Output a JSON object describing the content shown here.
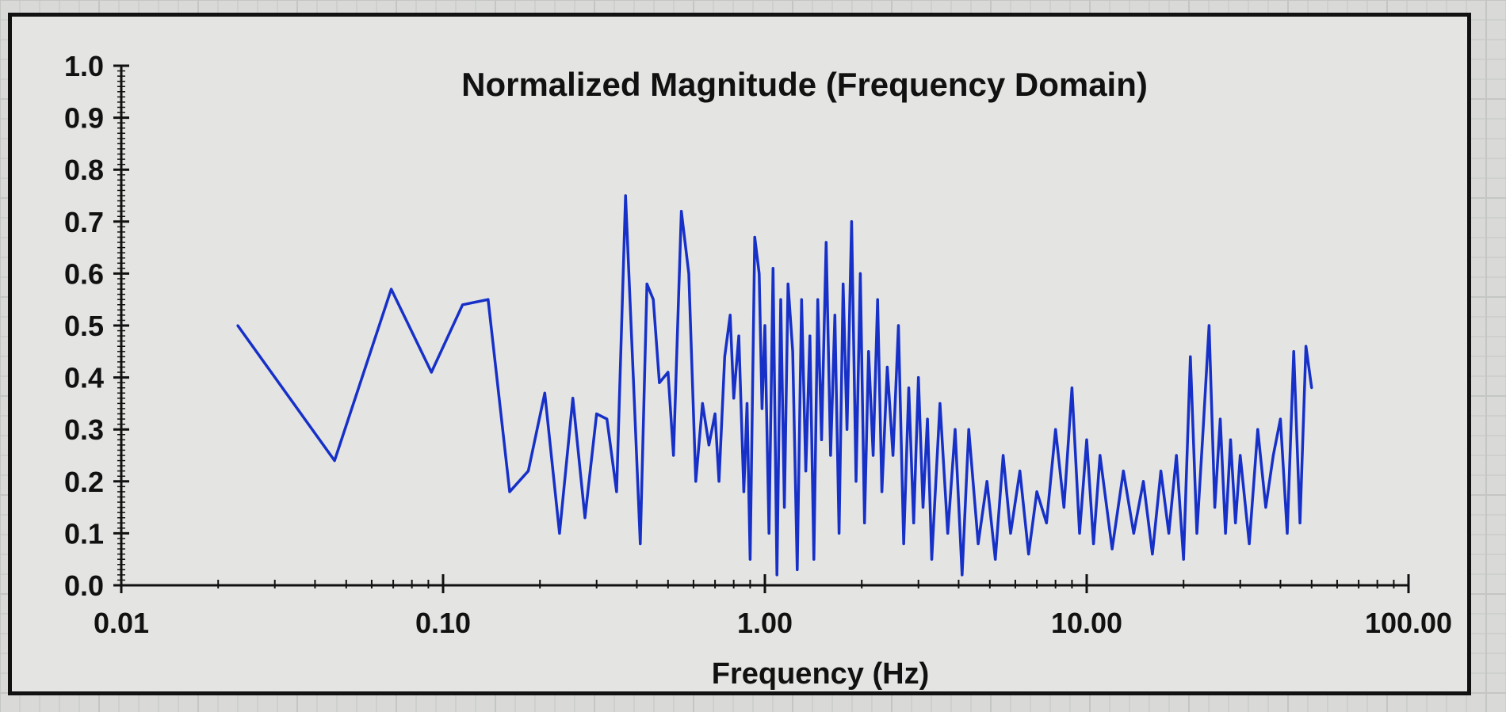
{
  "chart_data": {
    "type": "line",
    "title": "Normalized Magnitude (Frequency Domain)",
    "xlabel": "Frequency (Hz)",
    "ylabel": "",
    "x_scale": "log",
    "xlim": [
      0.01,
      100.0
    ],
    "ylim": [
      0.0,
      1.0
    ],
    "x_ticks": [
      "0.01",
      "0.10",
      "1.00",
      "10.00",
      "100.00"
    ],
    "y_ticks": [
      "0.0",
      "0.1",
      "0.2",
      "0.3",
      "0.4",
      "0.5",
      "0.6",
      "0.7",
      "0.8",
      "0.9",
      "1.0"
    ],
    "grid": false,
    "legend": "none",
    "line_color": "#1630c8",
    "series": [
      {
        "x": [
          0.023,
          0.046,
          0.069,
          0.092,
          0.115,
          0.138,
          0.161,
          0.184,
          0.207,
          0.23,
          0.253,
          0.276,
          0.3,
          0.323,
          0.346,
          0.369,
          0.39,
          0.41,
          0.43,
          0.45,
          0.47,
          0.5,
          0.52,
          0.55,
          0.58,
          0.61,
          0.64,
          0.67,
          0.7,
          0.72,
          0.75,
          0.78,
          0.8,
          0.83,
          0.86,
          0.88,
          0.9,
          0.93,
          0.96,
          0.98,
          1.0,
          1.03,
          1.06,
          1.09,
          1.12,
          1.15,
          1.18,
          1.22,
          1.26,
          1.3,
          1.34,
          1.38,
          1.42,
          1.46,
          1.5,
          1.55,
          1.6,
          1.65,
          1.7,
          1.75,
          1.8,
          1.86,
          1.92,
          1.98,
          2.04,
          2.1,
          2.17,
          2.24,
          2.31,
          2.4,
          2.5,
          2.6,
          2.7,
          2.8,
          2.9,
          3.0,
          3.1,
          3.2,
          3.3,
          3.5,
          3.7,
          3.9,
          4.1,
          4.3,
          4.6,
          4.9,
          5.2,
          5.5,
          5.8,
          6.2,
          6.6,
          7.0,
          7.5,
          8.0,
          8.5,
          9.0,
          9.5,
          10.0,
          10.5,
          11.0,
          12.0,
          13.0,
          14.0,
          15.0,
          16.0,
          17.0,
          18.0,
          19.0,
          20.0,
          21.0,
          22.0,
          23.0,
          24.0,
          25.0,
          26.0,
          27.0,
          28.0,
          29.0,
          30.0,
          32.0,
          34.0,
          36.0,
          38.0,
          40.0,
          42.0,
          44.0,
          46.0,
          48.0,
          50.0
        ],
        "values": [
          0.5,
          0.24,
          0.57,
          0.41,
          0.54,
          0.55,
          0.18,
          0.22,
          0.37,
          0.1,
          0.36,
          0.13,
          0.33,
          0.32,
          0.18,
          0.75,
          0.4,
          0.08,
          0.58,
          0.55,
          0.39,
          0.41,
          0.25,
          0.72,
          0.6,
          0.2,
          0.35,
          0.27,
          0.33,
          0.2,
          0.44,
          0.52,
          0.36,
          0.48,
          0.18,
          0.35,
          0.05,
          0.67,
          0.6,
          0.34,
          0.5,
          0.1,
          0.61,
          0.02,
          0.55,
          0.15,
          0.58,
          0.45,
          0.03,
          0.55,
          0.22,
          0.48,
          0.05,
          0.55,
          0.28,
          0.66,
          0.25,
          0.52,
          0.1,
          0.58,
          0.3,
          0.7,
          0.2,
          0.6,
          0.12,
          0.45,
          0.25,
          0.55,
          0.18,
          0.42,
          0.25,
          0.5,
          0.08,
          0.38,
          0.12,
          0.4,
          0.15,
          0.32,
          0.05,
          0.35,
          0.1,
          0.3,
          0.02,
          0.3,
          0.08,
          0.2,
          0.05,
          0.25,
          0.1,
          0.22,
          0.06,
          0.18,
          0.12,
          0.3,
          0.15,
          0.38,
          0.1,
          0.28,
          0.08,
          0.25,
          0.07,
          0.22,
          0.1,
          0.2,
          0.06,
          0.22,
          0.1,
          0.25,
          0.05,
          0.44,
          0.1,
          0.3,
          0.5,
          0.15,
          0.32,
          0.1,
          0.28,
          0.12,
          0.25,
          0.08,
          0.3,
          0.15,
          0.25,
          0.32,
          0.1,
          0.45,
          0.12,
          0.46,
          0.38
        ]
      }
    ]
  }
}
